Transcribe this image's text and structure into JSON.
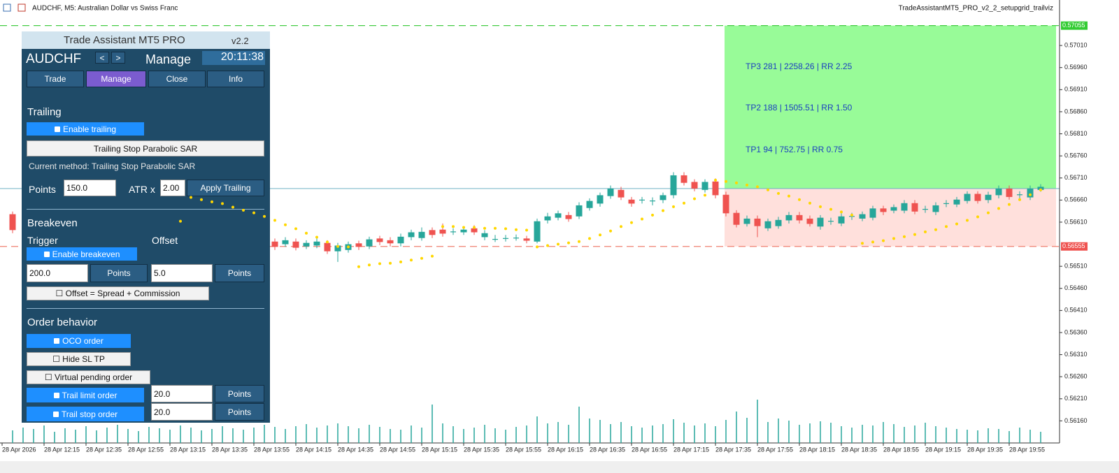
{
  "window": {
    "title": "AUDCHF, M5:  Australian Dollar vs Swiss Franc",
    "expert": "TradeAssistantMT5_PRO_v2_2_setupgrid_trailviz"
  },
  "panel": {
    "title": "Trade Assistant MT5 PRO",
    "version": "v2.2",
    "symbol": "AUDCHF",
    "prev": "<",
    "next": ">",
    "mode": "Manage",
    "time": "20:11:38",
    "tabs": [
      "Trade",
      "Manage",
      "Close",
      "Info"
    ],
    "trailing": {
      "heading": "Trailing",
      "enable": "Enable trailing",
      "method_button": "Trailing Stop Parabolic SAR",
      "current_method": "Current method: Trailing Stop Parabolic SAR",
      "points_label": "Points",
      "points_value": "150.0",
      "atr_label": "ATR x",
      "atr_value": "2.00",
      "apply": "Apply Trailing"
    },
    "breakeven": {
      "heading": "Breakeven",
      "trigger_label": "Trigger",
      "offset_label": "Offset",
      "enable": "Enable breakeven",
      "trigger_value": "200.0",
      "trigger_unit": "Points",
      "offset_value": "5.0",
      "offset_unit": "Points",
      "spread_option": "☐ Offset = Spread + Commission"
    },
    "orders": {
      "heading": "Order behavior",
      "oco": "OCO order",
      "hide_sltp": "☐ Hide SL TP",
      "virtual_pending": "☐ Virtual pending order",
      "trail_limit": "Trail limit order",
      "trail_limit_value": "20.0",
      "trail_limit_unit": "Points",
      "trail_stop": "Trail stop order",
      "trail_stop_value": "20.0",
      "trail_stop_unit": "Points"
    }
  },
  "chart_data": {
    "type": "candlestick",
    "x_labels": [
      "28 Apr 2026",
      "28 Apr 12:15",
      "28 Apr 12:35",
      "28 Apr 12:55",
      "28 Apr 13:15",
      "28 Apr 13:35",
      "28 Apr 13:55",
      "28 Apr 14:15",
      "28 Apr 14:35",
      "28 Apr 14:55",
      "28 Apr 15:15",
      "28 Apr 15:35",
      "28 Apr 15:55",
      "28 Apr 16:15",
      "28 Apr 16:35",
      "28 Apr 16:55",
      "28 Apr 17:15",
      "28 Apr 17:35",
      "28 Apr 17:55",
      "28 Apr 18:15",
      "28 Apr 18:35",
      "28 Apr 18:55",
      "28 Apr 19:15",
      "28 Apr 19:35",
      "28 Apr 19:55"
    ],
    "ylim": [
      0.5611,
      0.57113
    ],
    "yticks": [
      {
        "value": 0.5701,
        "label": "0.57010"
      },
      {
        "value": 0.5696,
        "label": "0.56960"
      },
      {
        "value": 0.5691,
        "label": "0.56910"
      },
      {
        "value": 0.5686,
        "label": "0.56860"
      },
      {
        "value": 0.5681,
        "label": "0.56810"
      },
      {
        "value": 0.5676,
        "label": "0.56760"
      },
      {
        "value": 0.5671,
        "label": "0.56710"
      },
      {
        "value": 0.5666,
        "label": "0.56660"
      },
      {
        "value": 0.5661,
        "label": "0.56610"
      },
      {
        "value": 0.5651,
        "label": "0.56510"
      },
      {
        "value": 0.5646,
        "label": "0.56460"
      },
      {
        "value": 0.5641,
        "label": "0.56410"
      },
      {
        "value": 0.5636,
        "label": "0.56360"
      },
      {
        "value": 0.5631,
        "label": "0.56310"
      },
      {
        "value": 0.5626,
        "label": "0.56260"
      },
      {
        "value": 0.5621,
        "label": "0.56210"
      },
      {
        "value": 0.5616,
        "label": "0.56160"
      }
    ],
    "up_color": "#26a69a",
    "down_color": "#ef5350",
    "sar_color": "#ffd700",
    "volume_color": "#26a69a",
    "tp_level": {
      "value": 0.57055,
      "label": "0.57055"
    },
    "sl_level": {
      "value": 0.56555,
      "label": "0.56555"
    },
    "bid": 0.56686,
    "targets": [
      "TP3 281 | 2258.26 | RR 2.25",
      "TP2 188 | 1505.51 | RR 1.50",
      "TP1 94 | 752.75 | RR 0.75"
    ],
    "ohlc": [
      [
        0.56628,
        0.56634,
        0.56585,
        0.56592
      ],
      null,
      null,
      null,
      null,
      null,
      null,
      null,
      null,
      null,
      null,
      null,
      null,
      null,
      null,
      null,
      null,
      null,
      null,
      null,
      null,
      null,
      null,
      null,
      null,
      [
        0.56566,
        0.56573,
        0.56547,
        0.56554
      ],
      [
        0.5656,
        0.56576,
        0.56554,
        0.56569
      ],
      [
        0.56566,
        0.56573,
        0.56546,
        0.56552
      ],
      [
        0.56555,
        0.56569,
        0.56549,
        0.56563
      ],
      [
        0.56557,
        0.56573,
        0.56551,
        0.56566
      ],
      [
        0.56563,
        0.56569,
        0.56538,
        0.56544
      ],
      [
        0.56544,
        0.56563,
        0.5652,
        0.56557
      ],
      [
        0.56547,
        0.56566,
        0.56541,
        0.5656
      ],
      [
        0.56562,
        0.56568,
        0.56547,
        0.56554
      ],
      [
        0.56555,
        0.56577,
        0.56549,
        0.56571
      ],
      [
        0.56573,
        0.56579,
        0.56558,
        0.56565
      ],
      [
        0.56569,
        0.56576,
        0.56555,
        0.56562
      ],
      [
        0.56562,
        0.56584,
        0.56555,
        0.56577
      ],
      [
        0.56576,
        0.56593,
        0.56569,
        0.56587
      ],
      [
        0.56574,
        0.56598,
        0.56568,
        0.56588
      ],
      [
        0.56592,
        0.56598,
        0.56574,
        0.56581
      ],
      [
        0.56593,
        0.56607,
        0.56577,
        0.56584
      ],
      [
        0.56588,
        0.56596,
        0.56581,
        0.56588
      ],
      [
        0.56587,
        0.566,
        0.56581,
        0.56593
      ],
      [
        0.56596,
        0.56603,
        0.56581,
        0.56587
      ],
      [
        0.56576,
        0.56592,
        0.56569,
        0.56585
      ],
      [
        0.56571,
        0.56581,
        0.56565,
        0.56571
      ],
      [
        0.56573,
        0.56581,
        0.56566,
        0.56573
      ],
      [
        0.56574,
        0.56582,
        0.56568,
        0.56574
      ],
      [
        0.56573,
        0.56579,
        0.56562,
        0.56568
      ],
      [
        0.56566,
        0.56618,
        0.56562,
        0.56612
      ],
      [
        0.56614,
        0.56631,
        0.56607,
        0.56623
      ],
      [
        0.5662,
        0.56636,
        0.56614,
        0.5663
      ],
      [
        0.56626,
        0.56633,
        0.56611,
        0.56617
      ],
      [
        0.56623,
        0.56655,
        0.56617,
        0.56648
      ],
      [
        0.56642,
        0.56664,
        0.56636,
        0.56658
      ],
      [
        0.56652,
        0.56677,
        0.56645,
        0.56671
      ],
      [
        0.56669,
        0.56693,
        0.56663,
        0.56686
      ],
      [
        0.56683,
        0.5669,
        0.5666,
        0.56666
      ],
      [
        0.56661,
        0.56667,
        0.56645,
        0.56652
      ],
      [
        0.5666,
        0.56667,
        0.56652,
        0.5666
      ],
      [
        0.56658,
        0.56666,
        0.56648,
        0.56658
      ],
      [
        0.5666,
        0.56677,
        0.56653,
        0.56671
      ],
      [
        0.56671,
        0.56723,
        0.56664,
        0.56716
      ],
      [
        0.56716,
        0.56723,
        0.56693,
        0.56699
      ],
      [
        0.56701,
        0.56707,
        0.5668,
        0.56686
      ],
      [
        0.56683,
        0.56707,
        0.56677,
        0.56701
      ],
      [
        0.56702,
        0.56709,
        0.56664,
        0.56671
      ],
      [
        0.56672,
        0.56679,
        0.56623,
        0.5663
      ],
      [
        0.56631,
        0.56637,
        0.56598,
        0.56604
      ],
      [
        0.56606,
        0.56625,
        0.566,
        0.56618
      ],
      [
        0.56618,
        0.56625,
        0.56576,
        0.56601
      ],
      [
        0.56596,
        0.56618,
        0.5659,
        0.56612
      ],
      [
        0.56601,
        0.56622,
        0.56595,
        0.56615
      ],
      [
        0.56614,
        0.56633,
        0.56607,
        0.56626
      ],
      [
        0.56626,
        0.56633,
        0.56607,
        0.56614
      ],
      [
        0.56618,
        0.56625,
        0.566,
        0.56606
      ],
      [
        0.566,
        0.56626,
        0.56593,
        0.5662
      ],
      [
        0.56612,
        0.5662,
        0.56604,
        0.56612
      ],
      [
        0.56607,
        0.5663,
        0.56601,
        0.56623
      ],
      [
        0.56623,
        0.56631,
        0.56615,
        0.56623
      ],
      [
        0.56618,
        0.56634,
        0.56612,
        0.56628
      ],
      [
        0.5662,
        0.56647,
        0.56614,
        0.56641
      ],
      [
        0.56641,
        0.56647,
        0.56626,
        0.56633
      ],
      [
        0.56636,
        0.5665,
        0.5663,
        0.56644
      ],
      [
        0.56636,
        0.5666,
        0.5663,
        0.56653
      ],
      [
        0.56653,
        0.5666,
        0.56628,
        0.56634
      ],
      [
        0.56639,
        0.56647,
        0.56631,
        0.56639
      ],
      [
        0.56633,
        0.56655,
        0.56626,
        0.56648
      ],
      [
        0.56652,
        0.5666,
        0.56644,
        0.56652
      ],
      [
        0.5665,
        0.56667,
        0.56644,
        0.56661
      ],
      [
        0.56658,
        0.5668,
        0.56652,
        0.56674
      ],
      [
        0.56674,
        0.5668,
        0.56652,
        0.56658
      ],
      [
        0.5666,
        0.56679,
        0.56653,
        0.56672
      ],
      [
        0.56671,
        0.56693,
        0.56664,
        0.56686
      ],
      [
        0.56686,
        0.56693,
        0.56661,
        0.56667
      ],
      [
        0.56672,
        0.5668,
        0.56664,
        0.56672
      ],
      [
        0.56666,
        0.56693,
        0.5666,
        0.56686
      ],
      [
        0.56683,
        0.56696,
        0.56679,
        0.5669
      ]
    ],
    "sar": [
      null,
      null,
      null,
      null,
      null,
      null,
      null,
      null,
      null,
      null,
      null,
      null,
      null,
      null,
      null,
      null,
      0.56612,
      0.56666,
      0.56661,
      0.56656,
      0.56652,
      0.56644,
      0.56637,
      0.56631,
      0.56623,
      0.56614,
      0.56604,
      0.56595,
      0.56585,
      0.56576,
      0.56565,
      0.56555,
      0.56554,
      0.56509,
      0.56513,
      0.56516,
      0.56517,
      0.5652,
      0.56524,
      0.56528,
      0.56533,
      0.566,
      0.566,
      0.56598,
      0.56598,
      0.56596,
      0.56596,
      0.56595,
      0.56593,
      0.56592,
      0.56554,
      0.56557,
      0.5656,
      0.56563,
      0.56566,
      0.56573,
      0.56581,
      0.5659,
      0.566,
      0.56609,
      0.56617,
      0.56626,
      0.56636,
      0.56645,
      0.56653,
      0.56663,
      0.56671,
      0.56705,
      0.56702,
      0.56699,
      0.56694,
      0.5669,
      0.56683,
      0.56675,
      0.56669,
      0.56661,
      0.56653,
      0.56645,
      0.56639,
      0.56633,
      0.56626,
      0.56562,
      0.56565,
      0.56568,
      0.56573,
      0.56577,
      0.56582,
      0.56588,
      0.56593,
      0.566,
      0.56606,
      0.56614,
      0.56622,
      0.56631,
      0.56641,
      0.5665,
      0.56661,
      0.56672,
      0.56683
    ],
    "volume": [
      18,
      22,
      20,
      25,
      16,
      21,
      19,
      24,
      18,
      22,
      26,
      20,
      17,
      23,
      21,
      19,
      25,
      22,
      18,
      20,
      24,
      21,
      19,
      22,
      26,
      23,
      20,
      24,
      27,
      22,
      25,
      28,
      24,
      21,
      26,
      23,
      20,
      19,
      25,
      22,
      55,
      28,
      24,
      20,
      22,
      26,
      21,
      19,
      23,
      25,
      38,
      28,
      30,
      26,
      52,
      35,
      33,
      27,
      30,
      24,
      22,
      25,
      27,
      34,
      29,
      25,
      28,
      24,
      33,
      45,
      36,
      62,
      30,
      35,
      32,
      26,
      28,
      31,
      29,
      24,
      22,
      26,
      25,
      30,
      27,
      23,
      25,
      29,
      24,
      22,
      20,
      19,
      18,
      21,
      20,
      17,
      22,
      19,
      16
    ]
  }
}
